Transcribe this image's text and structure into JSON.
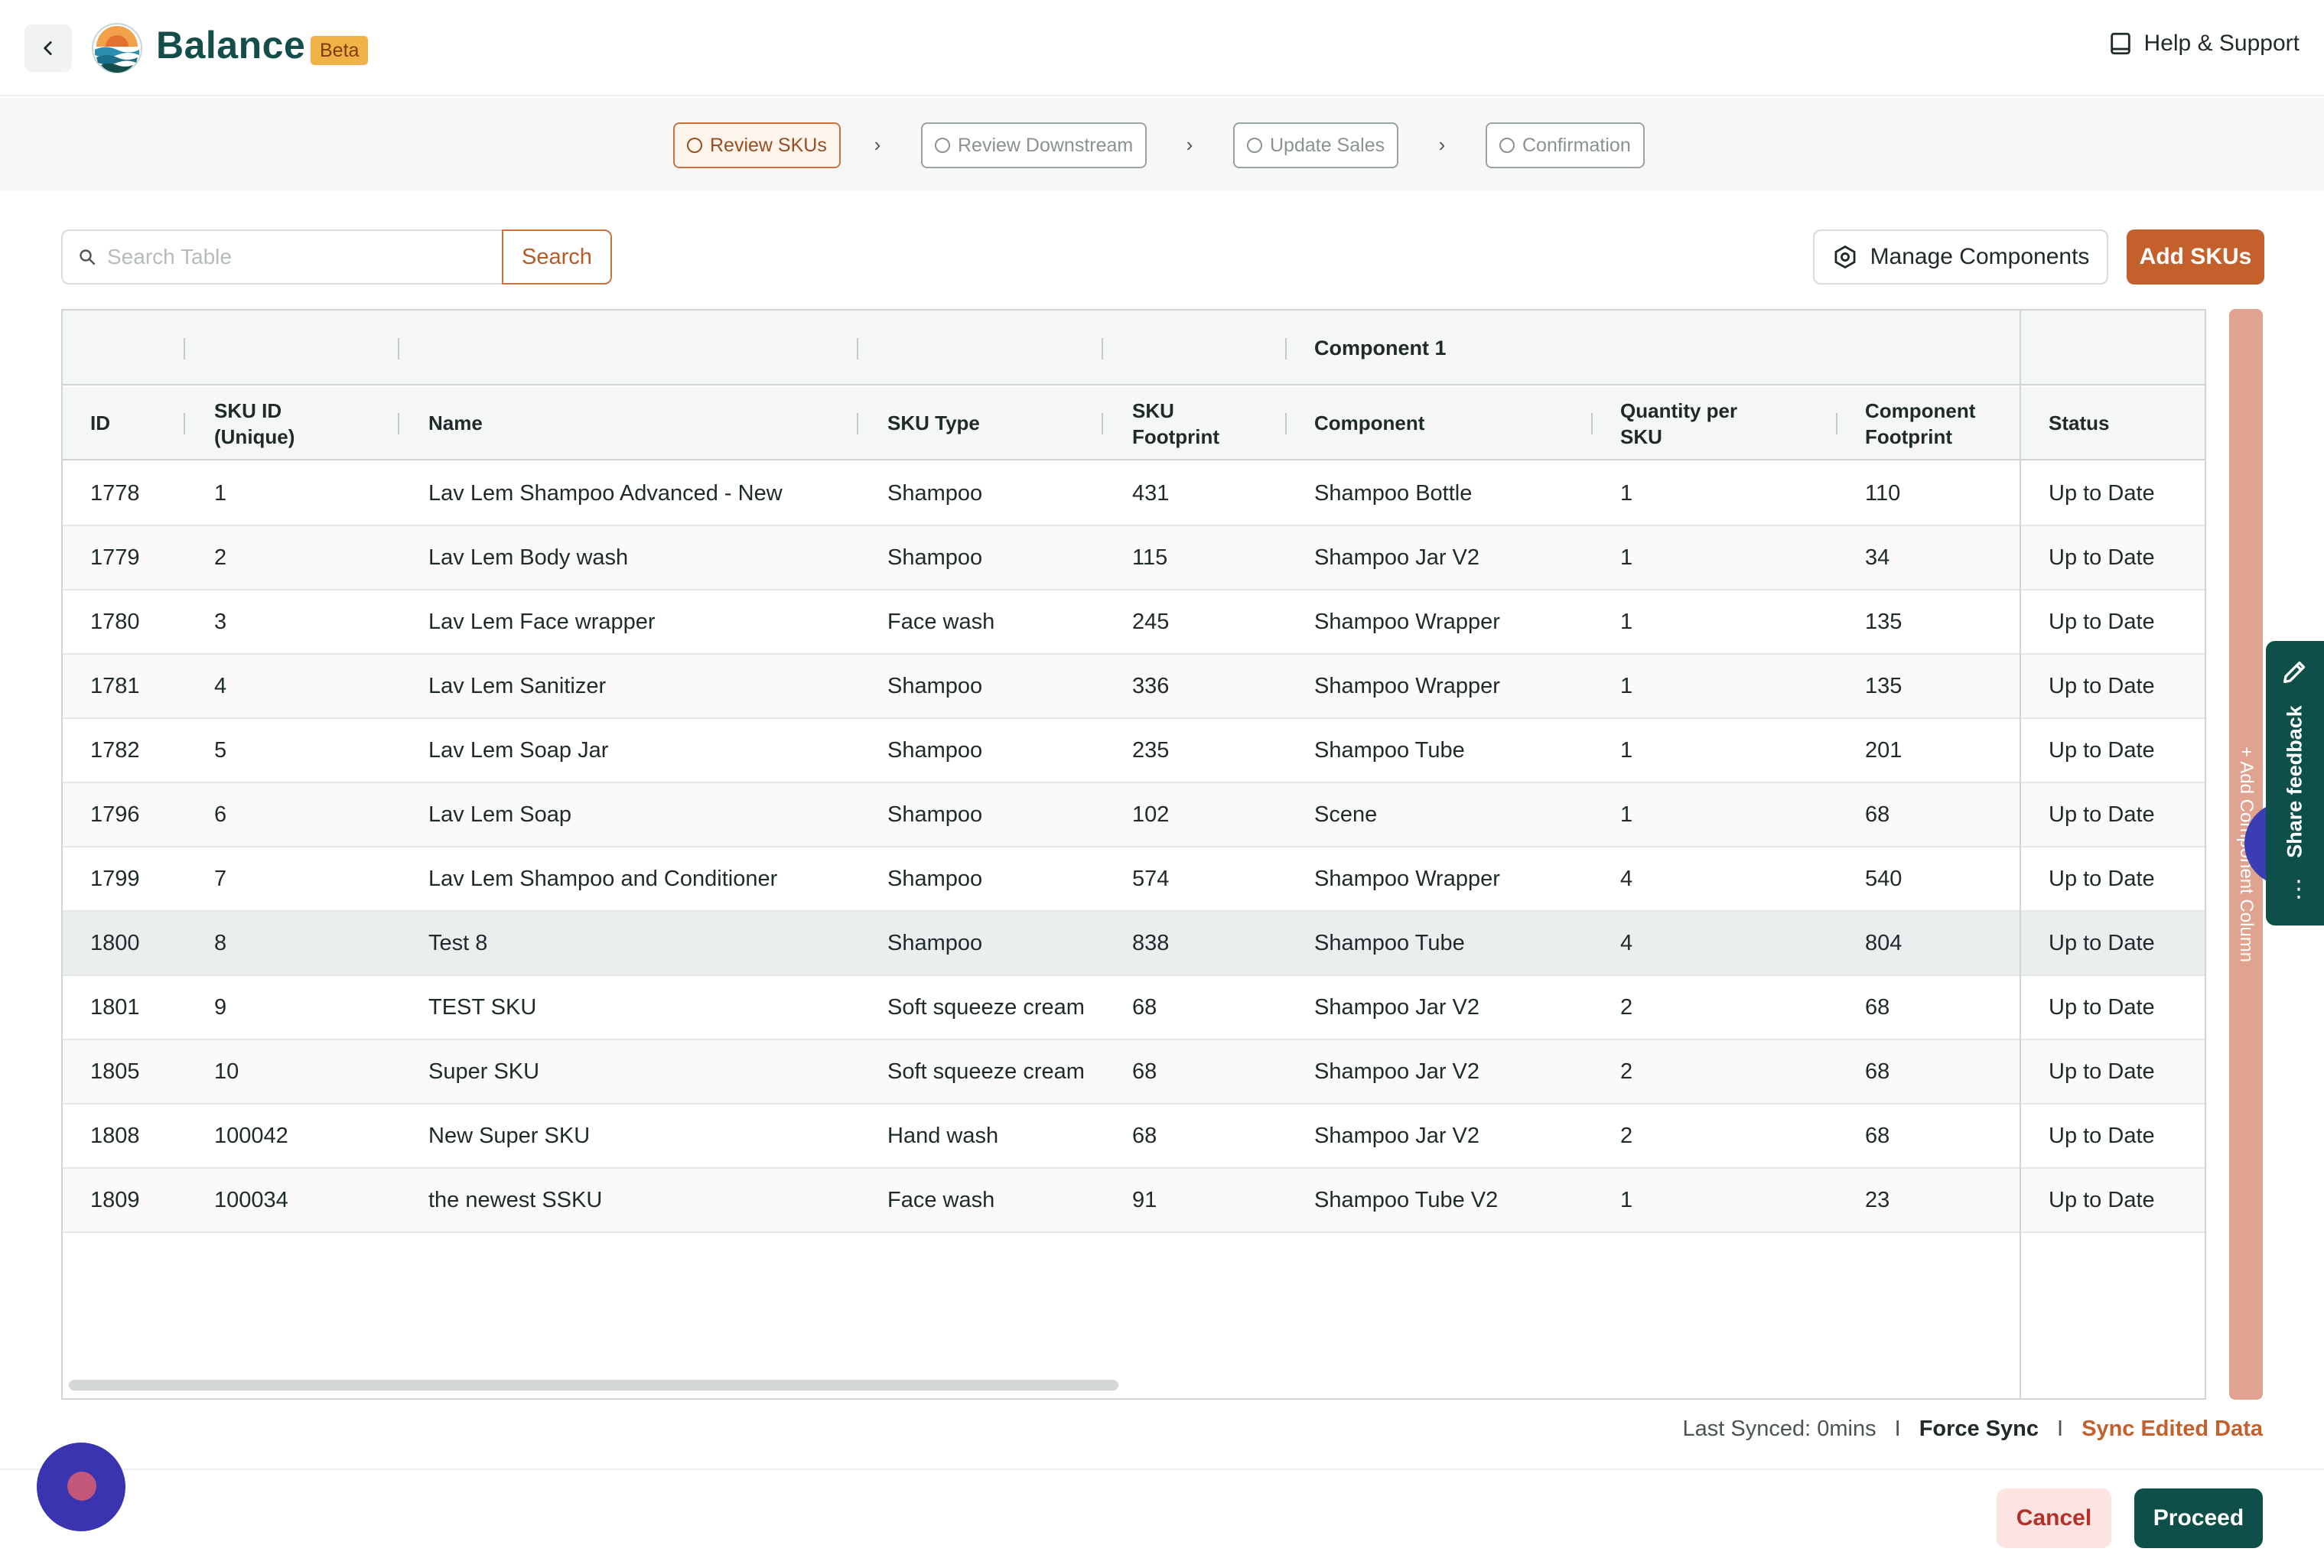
{
  "header": {
    "brand": "Balance",
    "badge": "Beta",
    "help_label": "Help & Support"
  },
  "stepper": {
    "steps": [
      {
        "label": "Review SKUs",
        "state": "active"
      },
      {
        "label": "Review Downstream",
        "state": "pending"
      },
      {
        "label": "Update Sales",
        "state": "pending"
      },
      {
        "label": "Confirmation",
        "state": "pending"
      }
    ]
  },
  "toolbar": {
    "search_placeholder": "Search Table",
    "search_button": "Search",
    "manage_button": "Manage Components",
    "add_button": "Add SKUs"
  },
  "table": {
    "group_label": "Component 1",
    "columns": {
      "id": "ID",
      "sku_id_1": "SKU ID",
      "sku_id_2": "(Unique)",
      "name": "Name",
      "sku_type": "SKU Type",
      "footprint_1": "SKU",
      "footprint_2": "Footprint",
      "component": "Component",
      "qty_1": "Quantity per",
      "qty_2": "SKU",
      "comp_fp_1": "Component",
      "comp_fp_2": "Footprint",
      "status": "Status"
    },
    "rows": [
      {
        "id": "1778",
        "sku_id": "1",
        "name": "Lav Lem Shampoo Advanced - New",
        "sku_type": "Shampoo",
        "footprint": "431",
        "component": "Shampoo Bottle",
        "qty": "1",
        "comp_fp": "110",
        "status": "Up to Date"
      },
      {
        "id": "1779",
        "sku_id": "2",
        "name": "Lav Lem Body wash",
        "sku_type": "Shampoo",
        "footprint": "115",
        "component": "Shampoo Jar V2",
        "qty": "1",
        "comp_fp": "34",
        "status": "Up to Date"
      },
      {
        "id": "1780",
        "sku_id": "3",
        "name": "Lav Lem Face wrapper",
        "sku_type": "Face wash",
        "footprint": "245",
        "component": "Shampoo Wrapper",
        "qty": "1",
        "comp_fp": "135",
        "status": "Up to Date"
      },
      {
        "id": "1781",
        "sku_id": "4",
        "name": "Lav Lem Sanitizer",
        "sku_type": "Shampoo",
        "footprint": "336",
        "component": "Shampoo Wrapper",
        "qty": "1",
        "comp_fp": "135",
        "status": "Up to Date"
      },
      {
        "id": "1782",
        "sku_id": "5",
        "name": "Lav Lem Soap Jar",
        "sku_type": "Shampoo",
        "footprint": "235",
        "component": "Shampoo Tube",
        "qty": "1",
        "comp_fp": "201",
        "status": "Up to Date"
      },
      {
        "id": "1796",
        "sku_id": "6",
        "name": "Lav Lem Soap",
        "sku_type": "Shampoo",
        "footprint": "102",
        "component": "Scene",
        "qty": "1",
        "comp_fp": "68",
        "status": "Up to Date"
      },
      {
        "id": "1799",
        "sku_id": "7",
        "name": "Lav Lem Shampoo and Conditioner",
        "sku_type": "Shampoo",
        "footprint": "574",
        "component": "Shampoo Wrapper",
        "qty": "4",
        "comp_fp": "540",
        "status": "Up to Date"
      },
      {
        "id": "1800",
        "sku_id": "8",
        "name": "Test 8",
        "sku_type": "Shampoo",
        "footprint": "838",
        "component": "Shampoo Tube",
        "qty": "4",
        "comp_fp": "804",
        "status": "Up to Date"
      },
      {
        "id": "1801",
        "sku_id": "9",
        "name": "TEST SKU",
        "sku_type": "Soft squeeze cream tube",
        "footprint": "68",
        "component": "Shampoo Jar V2",
        "qty": "2",
        "comp_fp": "68",
        "status": "Up to Date"
      },
      {
        "id": "1805",
        "sku_id": "10",
        "name": "Super SKU",
        "sku_type": "Soft squeeze cream tube",
        "footprint": "68",
        "component": "Shampoo Jar V2",
        "qty": "2",
        "comp_fp": "68",
        "status": "Up to Date"
      },
      {
        "id": "1808",
        "sku_id": "100042",
        "name": "New Super SKU",
        "sku_type": "Hand wash",
        "footprint": "68",
        "component": "Shampoo Jar V2",
        "qty": "2",
        "comp_fp": "68",
        "status": "Up to Date"
      },
      {
        "id": "1809",
        "sku_id": "100034",
        "name": "the newest SSKU",
        "sku_type": "Face wash",
        "footprint": "91",
        "component": "Shampoo Tube V2",
        "qty": "1",
        "comp_fp": "23",
        "status": "Up to Date"
      }
    ]
  },
  "side": {
    "add_component_label": "+ Add Component Column",
    "feedback_label": "Share feedback"
  },
  "sync": {
    "last_synced": "Last Synced: 0mins",
    "force_sync": "Force Sync",
    "sync_edited": "Sync Edited Data"
  },
  "footer": {
    "cancel": "Cancel",
    "proceed": "Proceed"
  },
  "colors": {
    "brand_teal": "#0f4f4a",
    "accent_orange": "#c4602b",
    "beta_badge": "#f0b247"
  }
}
